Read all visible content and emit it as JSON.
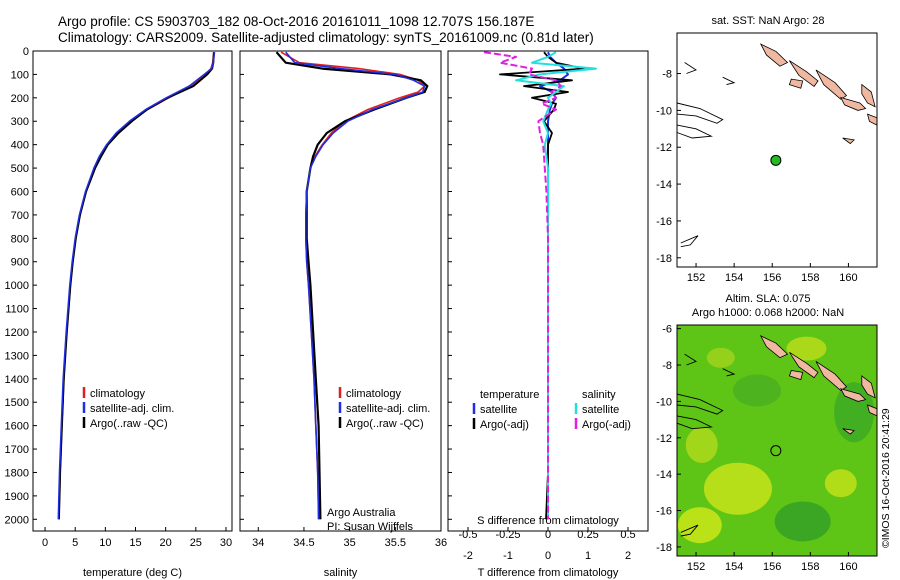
{
  "header": {
    "line1": "Argo profile: CS 5903703_182 08-Oct-2016 20161011_1098 12.707S 156.187E",
    "line2": "Climatology: CARS2009. Satellite-adjusted climatology: synTS_20161009.nc (0.81d later)"
  },
  "stamp": "©IMOS 16-Oct-2016 20:41:29",
  "colors": {
    "clim": "#e02020",
    "sat": "#1f2fe0",
    "argo": "#000000",
    "sal_sat": "#22e0e0",
    "sal_argo": "#e020e0",
    "ocean_map": "#5ec416",
    "land": "#f0b8a0",
    "float": "#22bb22"
  },
  "chart_data": [
    {
      "type": "line",
      "title": "",
      "xlabel": "temperature (deg C)",
      "ylabel": "",
      "xlim": [
        -2,
        31
      ],
      "ylim": [
        2050,
        0
      ],
      "xticks": [
        "0",
        "5",
        "10",
        "15",
        "20",
        "25",
        "30"
      ],
      "yticks": [
        "0",
        "100",
        "200",
        "300",
        "400",
        "500",
        "600",
        "700",
        "800",
        "900",
        "1000",
        "1100",
        "1200",
        "1300",
        "1400",
        "1500",
        "1600",
        "1700",
        "1800",
        "1900",
        "2000"
      ],
      "depth": [
        5,
        50,
        75,
        100,
        150,
        200,
        250,
        300,
        350,
        400,
        450,
        500,
        600,
        700,
        800,
        900,
        1000,
        1200,
        1400,
        1600,
        1800,
        2000
      ],
      "series": [
        {
          "name": "climatology",
          "values": [
            28.0,
            27.8,
            27.5,
            26.6,
            24.2,
            20.5,
            17.0,
            14.3,
            12.0,
            10.4,
            9.2,
            8.2,
            6.8,
            5.8,
            5.1,
            4.6,
            4.2,
            3.6,
            3.1,
            2.8,
            2.5,
            2.3
          ]
        },
        {
          "name": "satellite-adj. clim.",
          "values": [
            28.1,
            27.9,
            27.6,
            26.4,
            23.9,
            20.1,
            16.7,
            14.0,
            11.8,
            10.2,
            9.0,
            8.1,
            6.7,
            5.7,
            5.0,
            4.5,
            4.1,
            3.5,
            3.0,
            2.7,
            2.4,
            2.2
          ]
        },
        {
          "name": "Argo(..raw -QC)",
          "values": [
            28.0,
            27.9,
            27.7,
            26.9,
            24.6,
            20.3,
            16.9,
            14.4,
            12.2,
            10.4,
            9.3,
            8.3,
            6.8,
            5.8,
            5.1,
            4.6,
            4.2,
            3.6,
            3.1,
            2.8,
            2.5,
            2.3
          ]
        }
      ]
    },
    {
      "type": "line",
      "title": "",
      "xlabel": "salinity",
      "ylabel": "",
      "xlim": [
        33.8,
        36.0
      ],
      "ylim": [
        2050,
        0
      ],
      "xticks": [
        "34",
        "34.5",
        "35",
        "35.5",
        "36"
      ],
      "depth": [
        5,
        50,
        75,
        100,
        125,
        150,
        175,
        200,
        250,
        300,
        350,
        400,
        450,
        500,
        600,
        700,
        800,
        900,
        1000,
        1200,
        1400,
        1600,
        1800,
        2000
      ],
      "series": [
        {
          "name": "climatology",
          "values": [
            34.25,
            34.45,
            35.1,
            35.55,
            35.75,
            35.82,
            35.75,
            35.55,
            35.2,
            34.95,
            34.8,
            34.7,
            34.62,
            34.57,
            34.53,
            34.52,
            34.52,
            34.53,
            34.55,
            34.58,
            34.61,
            34.63,
            34.65,
            34.66
          ]
        },
        {
          "name": "satellite-adj. clim.",
          "values": [
            34.3,
            34.4,
            34.9,
            35.5,
            35.7,
            35.82,
            35.8,
            35.62,
            35.25,
            34.98,
            34.82,
            34.71,
            34.63,
            34.57,
            34.53,
            34.52,
            34.52,
            34.53,
            34.55,
            34.58,
            34.61,
            34.63,
            34.65,
            34.66
          ]
        },
        {
          "name": "Argo(..raw -QC)",
          "values": [
            34.2,
            34.3,
            34.7,
            35.45,
            35.78,
            35.85,
            35.82,
            35.62,
            35.27,
            34.95,
            34.75,
            34.65,
            34.6,
            34.57,
            34.53,
            34.53,
            34.53,
            34.55,
            34.57,
            34.6,
            34.63,
            34.66,
            34.67,
            34.68
          ]
        }
      ],
      "annotation": [
        "Argo Australia",
        "PI: Susan Wijffels"
      ]
    },
    {
      "type": "line",
      "title": "",
      "xlabel": "T difference from climatology",
      "xlabel2": "S difference from climatology",
      "xlim": [
        -2.5,
        2.5
      ],
      "xticks": [
        "-2",
        "-1",
        "0",
        "1",
        "2"
      ],
      "xticks2": [
        "-0.5",
        "-0.25",
        "0",
        "0.25",
        "0.5"
      ],
      "ylim": [
        2050,
        0
      ],
      "depth": [
        5,
        25,
        50,
        75,
        100,
        125,
        150,
        175,
        200,
        225,
        250,
        300,
        350,
        400,
        500,
        600,
        800,
        1000,
        1200,
        1400,
        1600,
        1800,
        2000
      ],
      "series": [
        {
          "name": "temperature satellite",
          "values": [
            0.0,
            0.05,
            0.2,
            0.4,
            0.5,
            0.3,
            -0.2,
            0.1,
            0.2,
            0.1,
            0.05,
            0.0,
            0.0,
            0.0,
            0.0,
            0.0,
            0.0,
            0.0,
            0.0,
            0.0,
            0.0,
            0.0,
            0.0
          ]
        },
        {
          "name": "temperature Argo(-adj)",
          "values": [
            -0.1,
            0.0,
            0.2,
            0.9,
            -1.2,
            0.6,
            -0.6,
            0.5,
            -0.4,
            0.2,
            0.15,
            -0.1,
            0.1,
            0.0,
            0.0,
            0.0,
            0.0,
            0.0,
            0.0,
            0.0,
            0.0,
            0.0,
            -0.05
          ]
        },
        {
          "name": "salinity satellite",
          "values": [
            0.05,
            0.0,
            -0.1,
            0.3,
            -0.05,
            -0.2,
            0.1,
            0.05,
            0.0,
            0.02,
            0.0,
            -0.03,
            0.0,
            -0.02,
            0.0,
            0.0,
            0.0,
            0.0,
            0.0,
            0.0,
            0.0,
            0.0,
            0.0
          ]
        },
        {
          "name": "salinity Argo(-adj)",
          "values": [
            -0.4,
            -0.2,
            -0.3,
            -0.1,
            -0.12,
            0.05,
            0.08,
            0.02,
            0.05,
            -0.04,
            0.05,
            -0.06,
            -0.05,
            -0.03,
            -0.02,
            -0.01,
            0.0,
            0.0,
            0.0,
            0.0,
            0.0,
            0.0,
            0.0
          ]
        }
      ],
      "legend_headers": [
        "temperature",
        "salinity"
      ]
    },
    {
      "type": "scatter",
      "title": "sat. SST: NaN Argo: 28",
      "xlim": [
        151,
        161.5
      ],
      "ylim": [
        -18.5,
        -5.8
      ],
      "xticks": [
        "152",
        "154",
        "156",
        "158",
        "160"
      ],
      "yticks": [
        "-8",
        "-10",
        "-12",
        "-14",
        "-16",
        "-18"
      ],
      "points": [
        {
          "x": 156.19,
          "y": -12.71
        }
      ]
    },
    {
      "type": "heatmap",
      "title": "Altim. SLA: 0.075",
      "title2": "Argo h1000: 0.068 h2000: NaN",
      "xlim": [
        151,
        161.5
      ],
      "ylim": [
        -18.5,
        -5.8
      ],
      "xticks": [
        "152",
        "154",
        "156",
        "158",
        "160"
      ],
      "yticks": [
        "-6",
        "-8",
        "-10",
        "-12",
        "-14",
        "-16",
        "-18"
      ],
      "points": [
        {
          "x": 156.19,
          "y": -12.71
        }
      ]
    }
  ]
}
